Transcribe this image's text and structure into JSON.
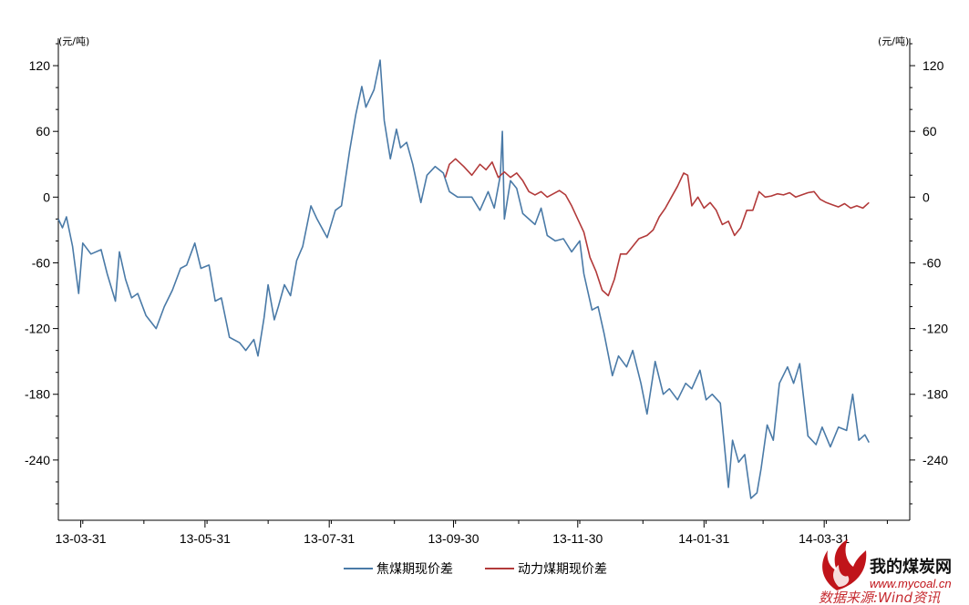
{
  "chart_data": {
    "type": "line",
    "y_unit_left": "(元/吨)",
    "y_unit_right": "(元/吨)",
    "ylim": [
      -295,
      145
    ],
    "yticks": [
      120,
      60,
      0,
      -60,
      -120,
      -180,
      -240
    ],
    "x_range": [
      "2013-03-20",
      "2014-05-12"
    ],
    "x_tick_labels": [
      "13-03-31",
      "13-05-31",
      "13-07-31",
      "13-09-30",
      "13-11-30",
      "14-01-31",
      "14-03-31"
    ],
    "x_tick_dates": [
      "2013-03-31",
      "2013-05-31",
      "2013-07-31",
      "2013-09-30",
      "2013-11-30",
      "2014-01-31",
      "2014-03-31"
    ],
    "grid": false,
    "legend_position": "bottom",
    "series": [
      {
        "name": "焦煤期现价差",
        "color": "#4a7aa7",
        "points": [
          [
            "2013-03-20",
            -20
          ],
          [
            "2013-03-22",
            -28
          ],
          [
            "2013-03-24",
            -18
          ],
          [
            "2013-03-27",
            -45
          ],
          [
            "2013-03-30",
            -88
          ],
          [
            "2013-04-01",
            -42
          ],
          [
            "2013-04-05",
            -52
          ],
          [
            "2013-04-10",
            -48
          ],
          [
            "2013-04-13",
            -70
          ],
          [
            "2013-04-17",
            -95
          ],
          [
            "2013-04-19",
            -50
          ],
          [
            "2013-04-22",
            -75
          ],
          [
            "2013-04-25",
            -92
          ],
          [
            "2013-04-28",
            -88
          ],
          [
            "2013-05-02",
            -108
          ],
          [
            "2013-05-07",
            -120
          ],
          [
            "2013-05-11",
            -100
          ],
          [
            "2013-05-15",
            -85
          ],
          [
            "2013-05-19",
            -65
          ],
          [
            "2013-05-22",
            -62
          ],
          [
            "2013-05-26",
            -42
          ],
          [
            "2013-05-29",
            -65
          ],
          [
            "2013-06-02",
            -62
          ],
          [
            "2013-06-05",
            -95
          ],
          [
            "2013-06-08",
            -92
          ],
          [
            "2013-06-12",
            -128
          ],
          [
            "2013-06-17",
            -133
          ],
          [
            "2013-06-20",
            -140
          ],
          [
            "2013-06-24",
            -130
          ],
          [
            "2013-06-26",
            -145
          ],
          [
            "2013-06-29",
            -110
          ],
          [
            "2013-07-01",
            -80
          ],
          [
            "2013-07-04",
            -112
          ],
          [
            "2013-07-06",
            -100
          ],
          [
            "2013-07-09",
            -80
          ],
          [
            "2013-07-12",
            -90
          ],
          [
            "2013-07-15",
            -58
          ],
          [
            "2013-07-18",
            -45
          ],
          [
            "2013-07-22",
            -8
          ],
          [
            "2013-07-25",
            -20
          ],
          [
            "2013-07-30",
            -37
          ],
          [
            "2013-08-03",
            -12
          ],
          [
            "2013-08-06",
            -8
          ],
          [
            "2013-08-10",
            42
          ],
          [
            "2013-08-13",
            75
          ],
          [
            "2013-08-16",
            101
          ],
          [
            "2013-08-18",
            82
          ],
          [
            "2013-08-22",
            98
          ],
          [
            "2013-08-25",
            125
          ],
          [
            "2013-08-27",
            70
          ],
          [
            "2013-08-30",
            35
          ],
          [
            "2013-09-02",
            62
          ],
          [
            "2013-09-04",
            45
          ],
          [
            "2013-09-07",
            50
          ],
          [
            "2013-09-10",
            30
          ],
          [
            "2013-09-14",
            -5
          ],
          [
            "2013-09-17",
            20
          ],
          [
            "2013-09-21",
            28
          ],
          [
            "2013-09-25",
            22
          ],
          [
            "2013-09-28",
            5
          ],
          [
            "2013-10-02",
            0
          ],
          [
            "2013-10-09",
            0
          ],
          [
            "2013-10-13",
            -12
          ],
          [
            "2013-10-17",
            5
          ],
          [
            "2013-10-20",
            -10
          ],
          [
            "2013-10-23",
            20
          ],
          [
            "2013-10-24",
            60
          ],
          [
            "2013-10-25",
            -20
          ],
          [
            "2013-10-28",
            15
          ],
          [
            "2013-10-31",
            8
          ],
          [
            "2013-11-03",
            -15
          ],
          [
            "2013-11-06",
            -20
          ],
          [
            "2013-11-09",
            -25
          ],
          [
            "2013-11-12",
            -10
          ],
          [
            "2013-11-15",
            -35
          ],
          [
            "2013-11-19",
            -40
          ],
          [
            "2013-11-23",
            -38
          ],
          [
            "2013-11-27",
            -50
          ],
          [
            "2013-12-01",
            -40
          ],
          [
            "2013-12-03",
            -70
          ],
          [
            "2013-12-07",
            -103
          ],
          [
            "2013-12-10",
            -100
          ],
          [
            "2013-12-13",
            -125
          ],
          [
            "2013-12-17",
            -163
          ],
          [
            "2013-12-20",
            -145
          ],
          [
            "2013-12-24",
            -155
          ],
          [
            "2013-12-27",
            -140
          ],
          [
            "2013-12-31",
            -170
          ],
          [
            "2014-01-03",
            -198
          ],
          [
            "2014-01-07",
            -150
          ],
          [
            "2014-01-11",
            -180
          ],
          [
            "2014-01-14",
            -175
          ],
          [
            "2014-01-18",
            -185
          ],
          [
            "2014-01-22",
            -170
          ],
          [
            "2014-01-25",
            -175
          ],
          [
            "2014-01-29",
            -158
          ],
          [
            "2014-02-01",
            -185
          ],
          [
            "2014-02-04",
            -180
          ],
          [
            "2014-02-08",
            -188
          ],
          [
            "2014-02-12",
            -265
          ],
          [
            "2014-02-14",
            -222
          ],
          [
            "2014-02-17",
            -242
          ],
          [
            "2014-02-20",
            -235
          ],
          [
            "2014-02-23",
            -275
          ],
          [
            "2014-02-26",
            -270
          ],
          [
            "2014-02-28",
            -248
          ],
          [
            "2014-03-03",
            -208
          ],
          [
            "2014-03-06",
            -222
          ],
          [
            "2014-03-09",
            -170
          ],
          [
            "2014-03-13",
            -155
          ],
          [
            "2014-03-16",
            -170
          ],
          [
            "2014-03-19",
            -152
          ],
          [
            "2014-03-23",
            -218
          ],
          [
            "2014-03-27",
            -226
          ],
          [
            "2014-03-30",
            -210
          ],
          [
            "2014-04-03",
            -228
          ],
          [
            "2014-04-07",
            -210
          ],
          [
            "2014-04-11",
            -213
          ],
          [
            "2014-04-14",
            -180
          ],
          [
            "2014-04-17",
            -222
          ],
          [
            "2014-04-20",
            -217
          ],
          [
            "2014-04-22",
            -224
          ]
        ]
      },
      {
        "name": "动力煤期现价差",
        "color": "#b23a3a",
        "points": [
          [
            "2013-09-26",
            18
          ],
          [
            "2013-09-28",
            30
          ],
          [
            "2013-10-01",
            35
          ],
          [
            "2013-10-05",
            28
          ],
          [
            "2013-10-09",
            20
          ],
          [
            "2013-10-13",
            30
          ],
          [
            "2013-10-16",
            25
          ],
          [
            "2013-10-19",
            32
          ],
          [
            "2013-10-22",
            18
          ],
          [
            "2013-10-25",
            23
          ],
          [
            "2013-10-28",
            18
          ],
          [
            "2013-10-31",
            22
          ],
          [
            "2013-11-03",
            15
          ],
          [
            "2013-11-06",
            5
          ],
          [
            "2013-11-09",
            2
          ],
          [
            "2013-11-12",
            5
          ],
          [
            "2013-11-15",
            0
          ],
          [
            "2013-11-18",
            3
          ],
          [
            "2013-11-21",
            6
          ],
          [
            "2013-11-24",
            2
          ],
          [
            "2013-11-27",
            -8
          ],
          [
            "2013-11-30",
            -20
          ],
          [
            "2013-12-03",
            -32
          ],
          [
            "2013-12-06",
            -55
          ],
          [
            "2013-12-09",
            -68
          ],
          [
            "2013-12-12",
            -85
          ],
          [
            "2013-12-15",
            -90
          ],
          [
            "2013-12-18",
            -75
          ],
          [
            "2013-12-21",
            -52
          ],
          [
            "2013-12-24",
            -52
          ],
          [
            "2013-12-27",
            -45
          ],
          [
            "2013-12-30",
            -38
          ],
          [
            "2014-01-03",
            -35
          ],
          [
            "2014-01-06",
            -30
          ],
          [
            "2014-01-09",
            -18
          ],
          [
            "2014-01-12",
            -10
          ],
          [
            "2014-01-15",
            0
          ],
          [
            "2014-01-18",
            10
          ],
          [
            "2014-01-21",
            22
          ],
          [
            "2014-01-23",
            20
          ],
          [
            "2014-01-25",
            -8
          ],
          [
            "2014-01-28",
            0
          ],
          [
            "2014-01-31",
            -10
          ],
          [
            "2014-02-03",
            -5
          ],
          [
            "2014-02-06",
            -12
          ],
          [
            "2014-02-09",
            -25
          ],
          [
            "2014-02-12",
            -22
          ],
          [
            "2014-02-15",
            -35
          ],
          [
            "2014-02-18",
            -28
          ],
          [
            "2014-02-21",
            -12
          ],
          [
            "2014-02-24",
            -12
          ],
          [
            "2014-02-27",
            5
          ],
          [
            "2014-03-02",
            0
          ],
          [
            "2014-03-05",
            1
          ],
          [
            "2014-03-08",
            3
          ],
          [
            "2014-03-11",
            2
          ],
          [
            "2014-03-14",
            4
          ],
          [
            "2014-03-17",
            0
          ],
          [
            "2014-03-20",
            2
          ],
          [
            "2014-03-23",
            4
          ],
          [
            "2014-03-26",
            5
          ],
          [
            "2014-03-29",
            -2
          ],
          [
            "2014-04-01",
            -5
          ],
          [
            "2014-04-04",
            -7
          ],
          [
            "2014-04-07",
            -9
          ],
          [
            "2014-04-10",
            -6
          ],
          [
            "2014-04-13",
            -10
          ],
          [
            "2014-04-16",
            -8
          ],
          [
            "2014-04-19",
            -10
          ],
          [
            "2014-04-22",
            -5
          ]
        ]
      }
    ]
  },
  "watermark": {
    "site_name": "我的煤炭网",
    "url": "www.mycoal.cn",
    "source": "数据来源:Wind资讯"
  }
}
